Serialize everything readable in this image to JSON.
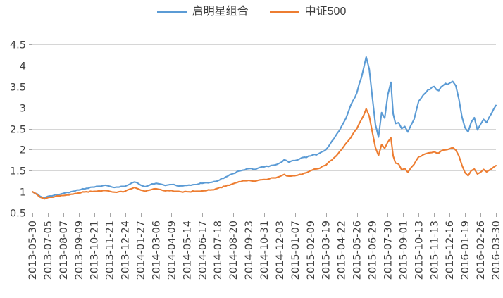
{
  "chart_data": {
    "type": "line",
    "title": "",
    "xlabel": "",
    "ylabel": "",
    "grid": true,
    "legend_position": "top-center",
    "background": "#FFFFFF",
    "gridline_color": "#D6D6D6",
    "axis_color": "#A6A6A6",
    "tick_text_color": "#404040",
    "ylim": [
      0.5,
      4.5
    ],
    "y_ticks": [
      0.5,
      1,
      1.5,
      2,
      2.5,
      3,
      3.5,
      4,
      4.5
    ],
    "y_tick_labels": [
      "0.5",
      "1",
      "1.5",
      "2",
      "2.5",
      "3",
      "3.5",
      "4",
      "4.5"
    ],
    "x_tick_labels": [
      "2013-05-30",
      "2013-07-05",
      "2013-08-07",
      "2013-09-09",
      "2013-10-21",
      "2013-11-21",
      "2013-12-24",
      "2014-01-27",
      "2014-03-06",
      "2014-04-09",
      "2014-05-14",
      "2014-06-17",
      "2014-07-18",
      "2014-08-20",
      "2014-09-23",
      "2014-10-31",
      "2014-12-03",
      "2015-01-07",
      "2015-02-09",
      "2015-03-19",
      "2015-04-22",
      "2015-05-26",
      "2015-06-29",
      "2015-07-30",
      "2015-09-01",
      "2015-10-13",
      "2015-11-13",
      "2015-12-16",
      "2016-01-19",
      "2016-02-26",
      "2016-03-30"
    ],
    "x_note": "series point x values are fractional tick indexes (0 = 2013-05-30, 30 = 2016-03-30)",
    "series": [
      {
        "id": "qimingxing-portfolio",
        "name": "启明星组合",
        "color": "#5B9BD5",
        "points": [
          [
            0,
            1.0
          ],
          [
            0.3,
            0.95
          ],
          [
            0.5,
            0.89
          ],
          [
            0.8,
            0.86
          ],
          [
            1,
            0.89
          ],
          [
            1.5,
            0.93
          ],
          [
            2,
            0.96
          ],
          [
            2.5,
            1.0
          ],
          [
            3,
            1.04
          ],
          [
            3.5,
            1.08
          ],
          [
            4,
            1.11
          ],
          [
            4.3,
            1.13
          ],
          [
            4.6,
            1.15
          ],
          [
            5,
            1.13
          ],
          [
            5.3,
            1.1
          ],
          [
            5.6,
            1.11
          ],
          [
            6,
            1.13
          ],
          [
            6.3,
            1.18
          ],
          [
            6.6,
            1.23
          ],
          [
            7,
            1.16
          ],
          [
            7.3,
            1.12
          ],
          [
            7.6,
            1.16
          ],
          [
            8,
            1.2
          ],
          [
            8.3,
            1.18
          ],
          [
            8.6,
            1.15
          ],
          [
            9,
            1.17
          ],
          [
            9.3,
            1.15
          ],
          [
            9.6,
            1.14
          ],
          [
            10,
            1.15
          ],
          [
            10.5,
            1.17
          ],
          [
            11,
            1.2
          ],
          [
            11.5,
            1.22
          ],
          [
            12,
            1.26
          ],
          [
            12.5,
            1.35
          ],
          [
            13,
            1.43
          ],
          [
            13.5,
            1.5
          ],
          [
            14,
            1.55
          ],
          [
            14.3,
            1.53
          ],
          [
            14.6,
            1.56
          ],
          [
            15,
            1.59
          ],
          [
            15.3,
            1.6
          ],
          [
            15.6,
            1.63
          ],
          [
            16,
            1.68
          ],
          [
            16.3,
            1.76
          ],
          [
            16.6,
            1.7
          ],
          [
            17,
            1.74
          ],
          [
            17.3,
            1.78
          ],
          [
            17.6,
            1.82
          ],
          [
            18,
            1.85
          ],
          [
            18.5,
            1.9
          ],
          [
            19,
            2.0
          ],
          [
            19.5,
            2.25
          ],
          [
            20,
            2.55
          ],
          [
            20.3,
            2.75
          ],
          [
            20.6,
            3.05
          ],
          [
            21,
            3.35
          ],
          [
            21.3,
            3.72
          ],
          [
            21.6,
            4.2
          ],
          [
            21.8,
            3.92
          ],
          [
            22,
            3.25
          ],
          [
            22.2,
            2.6
          ],
          [
            22.4,
            2.3
          ],
          [
            22.6,
            2.88
          ],
          [
            22.8,
            2.75
          ],
          [
            23,
            3.3
          ],
          [
            23.2,
            3.6
          ],
          [
            23.35,
            2.85
          ],
          [
            23.5,
            2.62
          ],
          [
            23.7,
            2.64
          ],
          [
            23.9,
            2.5
          ],
          [
            24.1,
            2.55
          ],
          [
            24.3,
            2.42
          ],
          [
            24.5,
            2.58
          ],
          [
            24.7,
            2.72
          ],
          [
            25,
            3.15
          ],
          [
            25.3,
            3.3
          ],
          [
            25.6,
            3.42
          ],
          [
            26,
            3.5
          ],
          [
            26.3,
            3.4
          ],
          [
            26.6,
            3.53
          ],
          [
            27,
            3.58
          ],
          [
            27.2,
            3.62
          ],
          [
            27.4,
            3.52
          ],
          [
            27.6,
            3.2
          ],
          [
            27.8,
            2.78
          ],
          [
            28,
            2.52
          ],
          [
            28.2,
            2.42
          ],
          [
            28.4,
            2.65
          ],
          [
            28.6,
            2.76
          ],
          [
            28.8,
            2.47
          ],
          [
            29,
            2.6
          ],
          [
            29.2,
            2.72
          ],
          [
            29.4,
            2.64
          ],
          [
            29.7,
            2.85
          ],
          [
            30,
            3.05
          ]
        ]
      },
      {
        "id": "csi500",
        "name": "中证500",
        "color": "#ED7D31",
        "points": [
          [
            0,
            1.0
          ],
          [
            0.3,
            0.93
          ],
          [
            0.5,
            0.87
          ],
          [
            0.8,
            0.83
          ],
          [
            1,
            0.86
          ],
          [
            1.5,
            0.89
          ],
          [
            2,
            0.91
          ],
          [
            2.5,
            0.94
          ],
          [
            3,
            0.97
          ],
          [
            3.5,
            1.0
          ],
          [
            4,
            1.01
          ],
          [
            4.3,
            1.02
          ],
          [
            4.6,
            1.03
          ],
          [
            5,
            1.01
          ],
          [
            5.3,
            0.99
          ],
          [
            5.6,
            1.0
          ],
          [
            6,
            1.01
          ],
          [
            6.3,
            1.06
          ],
          [
            6.6,
            1.1
          ],
          [
            7,
            1.04
          ],
          [
            7.3,
            1.01
          ],
          [
            7.6,
            1.04
          ],
          [
            8,
            1.07
          ],
          [
            8.3,
            1.05
          ],
          [
            8.6,
            1.02
          ],
          [
            9,
            1.03
          ],
          [
            9.3,
            1.01
          ],
          [
            9.6,
            1.0
          ],
          [
            10,
            1.0
          ],
          [
            10.5,
            1.01
          ],
          [
            11,
            1.02
          ],
          [
            11.5,
            1.04
          ],
          [
            12,
            1.08
          ],
          [
            12.5,
            1.13
          ],
          [
            13,
            1.19
          ],
          [
            13.5,
            1.24
          ],
          [
            14,
            1.27
          ],
          [
            14.3,
            1.25
          ],
          [
            14.6,
            1.27
          ],
          [
            15,
            1.29
          ],
          [
            15.3,
            1.3
          ],
          [
            15.6,
            1.33
          ],
          [
            16,
            1.36
          ],
          [
            16.3,
            1.41
          ],
          [
            16.6,
            1.37
          ],
          [
            17,
            1.38
          ],
          [
            17.3,
            1.41
          ],
          [
            17.6,
            1.44
          ],
          [
            18,
            1.5
          ],
          [
            18.5,
            1.55
          ],
          [
            19,
            1.63
          ],
          [
            19.5,
            1.8
          ],
          [
            20,
            2.0
          ],
          [
            20.3,
            2.15
          ],
          [
            20.6,
            2.28
          ],
          [
            21,
            2.5
          ],
          [
            21.3,
            2.72
          ],
          [
            21.6,
            2.97
          ],
          [
            21.8,
            2.8
          ],
          [
            22,
            2.42
          ],
          [
            22.2,
            2.05
          ],
          [
            22.4,
            1.86
          ],
          [
            22.6,
            2.12
          ],
          [
            22.8,
            2.03
          ],
          [
            23,
            2.18
          ],
          [
            23.2,
            2.28
          ],
          [
            23.35,
            1.85
          ],
          [
            23.5,
            1.68
          ],
          [
            23.7,
            1.66
          ],
          [
            23.9,
            1.52
          ],
          [
            24.1,
            1.55
          ],
          [
            24.3,
            1.46
          ],
          [
            24.5,
            1.57
          ],
          [
            24.7,
            1.65
          ],
          [
            25,
            1.83
          ],
          [
            25.3,
            1.88
          ],
          [
            25.6,
            1.92
          ],
          [
            26,
            1.95
          ],
          [
            26.3,
            1.92
          ],
          [
            26.6,
            1.99
          ],
          [
            27,
            2.02
          ],
          [
            27.2,
            2.05
          ],
          [
            27.4,
            1.99
          ],
          [
            27.6,
            1.85
          ],
          [
            27.8,
            1.63
          ],
          [
            28,
            1.45
          ],
          [
            28.2,
            1.38
          ],
          [
            28.4,
            1.5
          ],
          [
            28.6,
            1.54
          ],
          [
            28.8,
            1.42
          ],
          [
            29,
            1.46
          ],
          [
            29.2,
            1.53
          ],
          [
            29.4,
            1.47
          ],
          [
            29.7,
            1.54
          ],
          [
            30,
            1.62
          ]
        ]
      }
    ]
  }
}
